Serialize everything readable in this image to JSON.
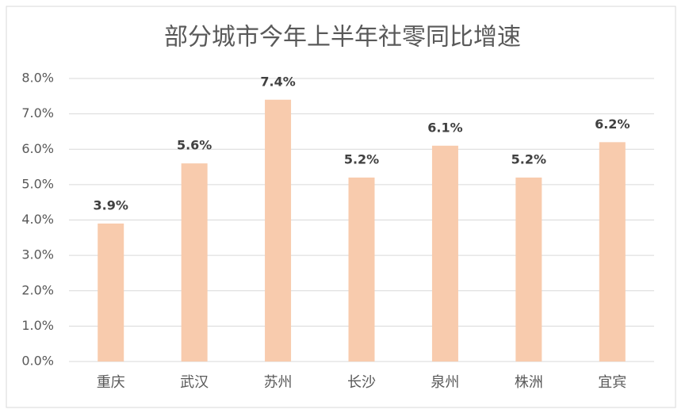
{
  "chart_data": {
    "type": "bar",
    "title": "部分城市今年上半年社零同比增速",
    "categories": [
      "重庆",
      "武汉",
      "苏州",
      "长沙",
      "泉州",
      "株洲",
      "宜宾"
    ],
    "values": [
      3.9,
      5.6,
      7.4,
      5.2,
      6.1,
      5.2,
      6.2
    ],
    "value_labels": [
      "3.9%",
      "5.6%",
      "7.4%",
      "5.2%",
      "6.1%",
      "5.2%",
      "6.2%"
    ],
    "color": "#f8cbad",
    "ylim": [
      0,
      8
    ],
    "yticks": [
      {
        "value": 0,
        "label": "0.0%"
      },
      {
        "value": 1,
        "label": "1.0%"
      },
      {
        "value": 2,
        "label": "2.0%"
      },
      {
        "value": 3,
        "label": "3.0%"
      },
      {
        "value": 4,
        "label": "4.0%"
      },
      {
        "value": 5,
        "label": "5.0%"
      },
      {
        "value": 6,
        "label": "6.0%"
      },
      {
        "value": 7,
        "label": "7.0%"
      },
      {
        "value": 8,
        "label": "8.0%"
      }
    ],
    "grid": true
  }
}
